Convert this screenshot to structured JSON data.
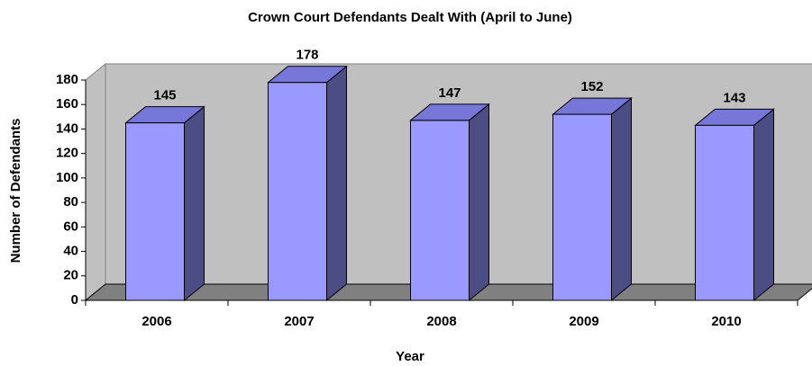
{
  "chart_data": {
    "type": "bar3d",
    "title": "Crown Court Defendants Dealt With (April to June)",
    "x_label": "Year",
    "y_label": "Number of Defendants",
    "categories": [
      "2006",
      "2007",
      "2008",
      "2009",
      "2010"
    ],
    "values": [
      145,
      178,
      147,
      152,
      143
    ],
    "color": "#9999ff",
    "ylim": [
      0,
      180
    ],
    "yticks": [
      0,
      20,
      40,
      60,
      80,
      100,
      120,
      140,
      160,
      180
    ],
    "grid": false
  }
}
